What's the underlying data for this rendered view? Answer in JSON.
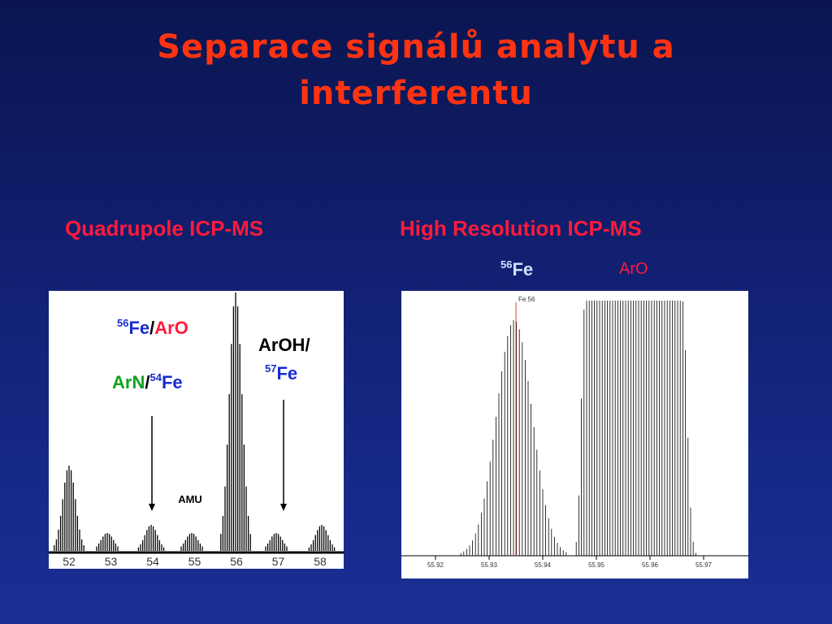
{
  "title": "Separace signálů analytu a interferentu",
  "left": {
    "heading": "Quadrupole ICP-MS",
    "label_fe_aro": {
      "mass": "56",
      "fe": "Fe",
      "slash": "/",
      "aro": "ArO"
    },
    "label_arn_fe": {
      "arn": "ArN",
      "slash": "/",
      "mass": "54",
      "fe": "Fe"
    },
    "label_aroh_fe": {
      "aroh": "ArOH/",
      "mass": "57",
      "fe": "Fe"
    },
    "unit": "AMU",
    "axis_labels": [
      "52",
      "53",
      "54",
      "55",
      "56",
      "57",
      "58"
    ]
  },
  "right": {
    "heading": "High Resolution ICP-MS",
    "fe_mass": "56",
    "fe": "Fe",
    "aro": "ArO",
    "marker": "Fe 56",
    "axis_labels": [
      "55.92",
      "55.93",
      "55.94",
      "55.95",
      "55.96",
      "55.97"
    ]
  }
}
